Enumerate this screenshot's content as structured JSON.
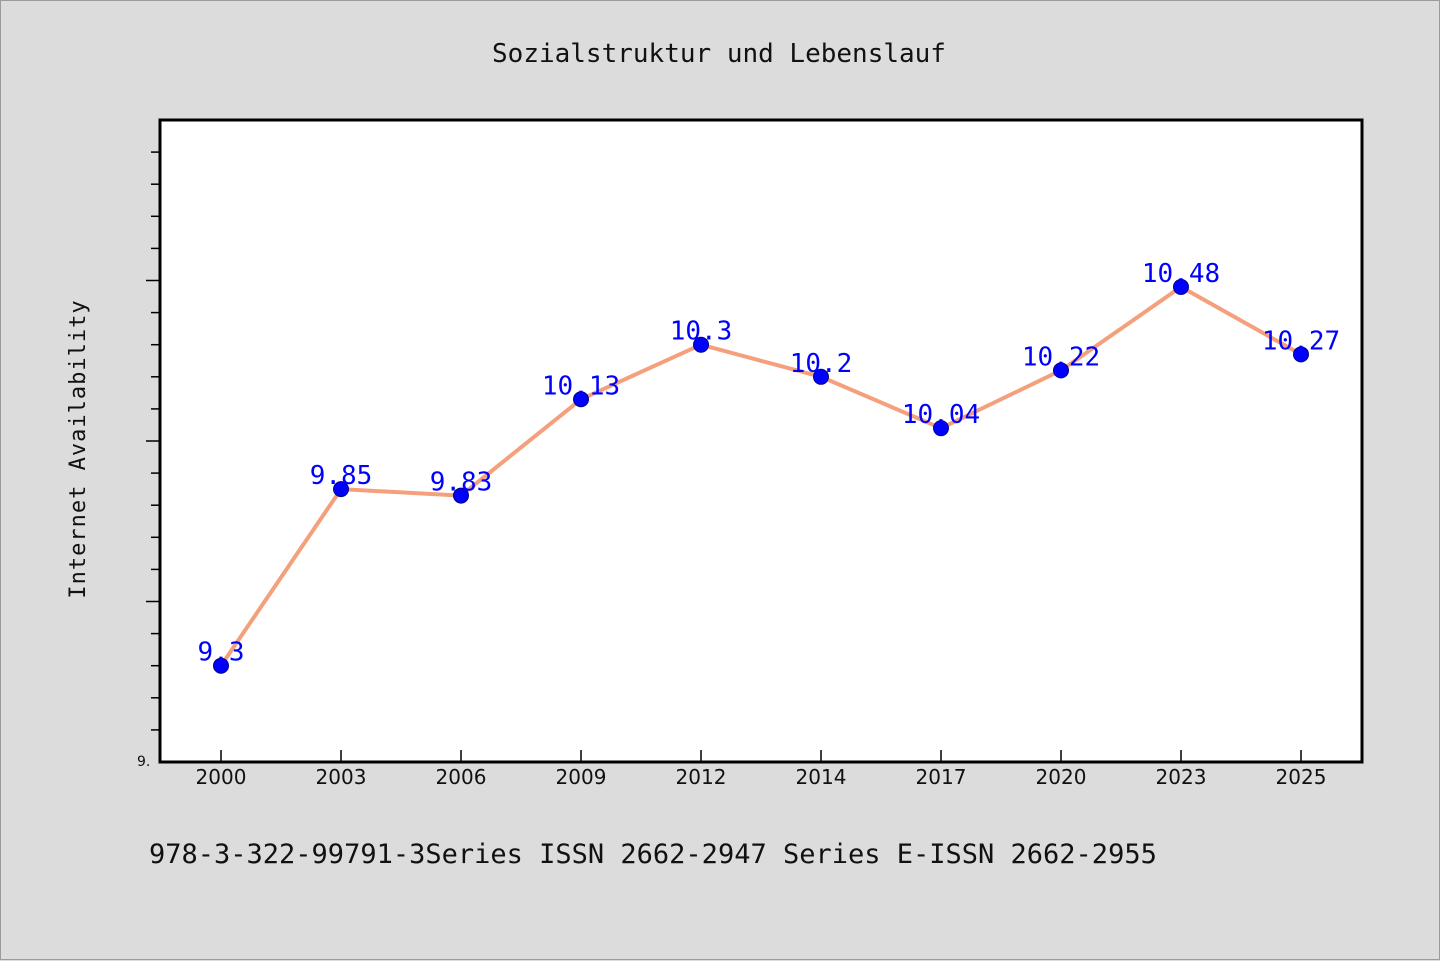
{
  "chart_data": {
    "type": "line",
    "title": "Sozialstruktur und Lebenslauf",
    "xlabel": "",
    "ylabel": "Internet Availability",
    "categories": [
      "2000",
      "2003",
      "2006",
      "2009",
      "2012",
      "2014",
      "2017",
      "2020",
      "2023",
      "2025"
    ],
    "series": [
      {
        "values": [
          9.3,
          9.85,
          9.83,
          10.13,
          10.3,
          10.2,
          10.04,
          10.22,
          10.48,
          10.27
        ],
        "data_labels": [
          "9.3",
          "9.85",
          "9.83",
          "10.13",
          "10.3",
          "10.2",
          "10.04",
          "10.22",
          "10.48",
          "10.27"
        ],
        "line_color": "#f4a07c",
        "marker_color": "#0000ff"
      }
    ],
    "ylim": [
      9.0,
      11.0
    ],
    "ytick_labels": [
      "9."
    ],
    "grid": false,
    "legend": "none"
  },
  "footer": {
    "text": "978-3-322-99791-3Series ISSN 2662-2947 Series E-ISSN 2662-2955"
  },
  "colors": {
    "background": "#dcdcdc",
    "plot_background": "#ffffff",
    "axis": "#000000",
    "line": "#f4a07c",
    "marker": "#0000ff",
    "data_label": "#0000ff"
  }
}
